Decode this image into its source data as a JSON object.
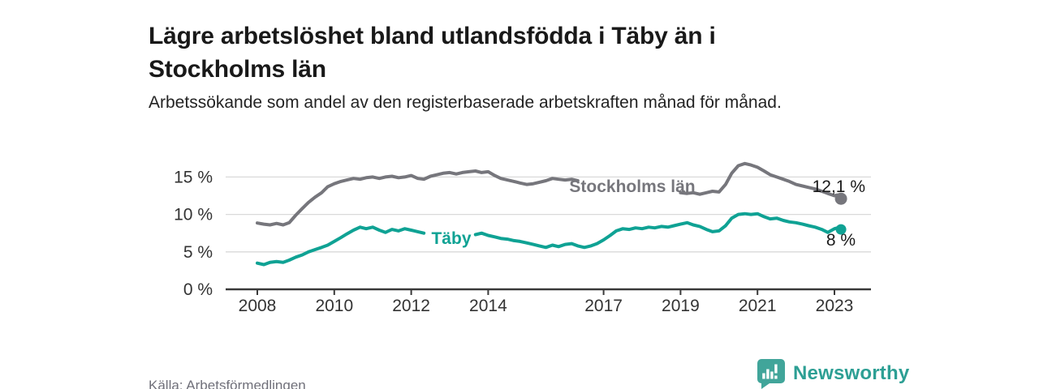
{
  "title": "Lägre arbetslöshet bland utlandsfödda i Täby än i Stockholms län",
  "subtitle": "Arbetssökande som andel av den registerbaserade arbetskraften månad för månad.",
  "source": "Källa: Arbetsförmedlingen",
  "brand": {
    "name": "Newsworthy",
    "icon": "newsworthy-speech-bubble-bar-chart-icon",
    "icon_color": "#41a59a",
    "text_color": "#2d9f94"
  },
  "colors": {
    "stockholm_line": "#76767c",
    "taby_line": "#0fa294",
    "axis": "#3a3a3a",
    "grid": "#d9d9d9",
    "tick_text": "#333333",
    "end_label_text": "#1a1a1a"
  },
  "chart_data": {
    "type": "line",
    "title": "Lägre arbetslöshet bland utlandsfödda i Täby än i Stockholms län",
    "xlabel": "",
    "ylabel": "Arbetssökande som andel av den registerbaserade arbetskraften",
    "x_ticks": [
      2008,
      2010,
      2012,
      2014,
      2017,
      2019,
      2021,
      2023
    ],
    "y_ticks": [
      {
        "value": 0,
        "label": "0 %"
      },
      {
        "value": 5,
        "label": "5 %"
      },
      {
        "value": 10,
        "label": "10 %"
      },
      {
        "value": 15,
        "label": "15 %"
      }
    ],
    "xlim": [
      2007.2,
      2023.95
    ],
    "ylim": [
      0,
      18
    ],
    "grid": "horizontal",
    "legend_position": "inline-on-line",
    "series": [
      {
        "name": "Stockholms län",
        "color": "#76767c",
        "end_label": "12,1 %",
        "end_value": 12.1,
        "label_gap": [
          2016.4,
          2018.85
        ],
        "points": [
          [
            2008.0,
            8.85
          ],
          [
            2008.17,
            8.7
          ],
          [
            2008.33,
            8.6
          ],
          [
            2008.5,
            8.8
          ],
          [
            2008.67,
            8.6
          ],
          [
            2008.83,
            8.9
          ],
          [
            2009.0,
            9.9
          ],
          [
            2009.17,
            10.8
          ],
          [
            2009.33,
            11.6
          ],
          [
            2009.5,
            12.3
          ],
          [
            2009.67,
            12.9
          ],
          [
            2009.83,
            13.7
          ],
          [
            2010.0,
            14.1
          ],
          [
            2010.17,
            14.4
          ],
          [
            2010.33,
            14.6
          ],
          [
            2010.5,
            14.8
          ],
          [
            2010.67,
            14.7
          ],
          [
            2010.83,
            14.9
          ],
          [
            2011.0,
            15.0
          ],
          [
            2011.17,
            14.8
          ],
          [
            2011.33,
            15.0
          ],
          [
            2011.5,
            15.1
          ],
          [
            2011.67,
            14.9
          ],
          [
            2011.83,
            15.0
          ],
          [
            2012.0,
            15.2
          ],
          [
            2012.17,
            14.8
          ],
          [
            2012.33,
            14.7
          ],
          [
            2012.5,
            15.1
          ],
          [
            2012.67,
            15.3
          ],
          [
            2012.83,
            15.5
          ],
          [
            2013.0,
            15.6
          ],
          [
            2013.17,
            15.4
          ],
          [
            2013.33,
            15.6
          ],
          [
            2013.5,
            15.7
          ],
          [
            2013.67,
            15.8
          ],
          [
            2013.83,
            15.6
          ],
          [
            2014.0,
            15.7
          ],
          [
            2014.17,
            15.2
          ],
          [
            2014.33,
            14.8
          ],
          [
            2014.5,
            14.6
          ],
          [
            2014.67,
            14.4
          ],
          [
            2014.83,
            14.2
          ],
          [
            2015.0,
            14.0
          ],
          [
            2015.17,
            14.1
          ],
          [
            2015.33,
            14.3
          ],
          [
            2015.5,
            14.5
          ],
          [
            2015.67,
            14.8
          ],
          [
            2015.83,
            14.7
          ],
          [
            2016.0,
            14.6
          ],
          [
            2016.17,
            14.7
          ],
          [
            2016.33,
            14.5
          ],
          [
            2016.5,
            14.4
          ],
          [
            2016.75,
            14.2
          ],
          [
            2017.0,
            14.0
          ],
          [
            2017.25,
            13.8
          ],
          [
            2017.5,
            13.6
          ],
          [
            2017.75,
            13.4
          ],
          [
            2018.0,
            13.3
          ],
          [
            2018.25,
            13.2
          ],
          [
            2018.5,
            13.1
          ],
          [
            2018.75,
            13.0
          ],
          [
            2019.0,
            12.9
          ],
          [
            2019.17,
            12.8
          ],
          [
            2019.33,
            12.9
          ],
          [
            2019.5,
            12.7
          ],
          [
            2019.67,
            12.9
          ],
          [
            2019.83,
            13.1
          ],
          [
            2020.0,
            13.0
          ],
          [
            2020.17,
            14.0
          ],
          [
            2020.33,
            15.5
          ],
          [
            2020.5,
            16.5
          ],
          [
            2020.67,
            16.8
          ],
          [
            2020.83,
            16.6
          ],
          [
            2021.0,
            16.3
          ],
          [
            2021.17,
            15.8
          ],
          [
            2021.33,
            15.3
          ],
          [
            2021.5,
            15.0
          ],
          [
            2021.67,
            14.7
          ],
          [
            2021.83,
            14.4
          ],
          [
            2022.0,
            14.0
          ],
          [
            2022.17,
            13.8
          ],
          [
            2022.33,
            13.6
          ],
          [
            2022.5,
            13.4
          ],
          [
            2022.67,
            13.1
          ],
          [
            2022.83,
            12.8
          ],
          [
            2023.0,
            12.5
          ],
          [
            2023.08,
            12.6
          ],
          [
            2023.17,
            12.1
          ]
        ]
      },
      {
        "name": "Täby",
        "color": "#0fa294",
        "end_label": "8 %",
        "end_value": 8.0,
        "label_gap": [
          2012.45,
          2013.6
        ],
        "points": [
          [
            2008.0,
            3.5
          ],
          [
            2008.17,
            3.3
          ],
          [
            2008.33,
            3.6
          ],
          [
            2008.5,
            3.7
          ],
          [
            2008.67,
            3.6
          ],
          [
            2008.83,
            3.9
          ],
          [
            2009.0,
            4.3
          ],
          [
            2009.17,
            4.6
          ],
          [
            2009.33,
            5.0
          ],
          [
            2009.5,
            5.3
          ],
          [
            2009.67,
            5.6
          ],
          [
            2009.83,
            5.9
          ],
          [
            2010.0,
            6.4
          ],
          [
            2010.17,
            6.9
          ],
          [
            2010.33,
            7.4
          ],
          [
            2010.5,
            7.9
          ],
          [
            2010.67,
            8.3
          ],
          [
            2010.83,
            8.1
          ],
          [
            2011.0,
            8.3
          ],
          [
            2011.17,
            7.9
          ],
          [
            2011.33,
            7.6
          ],
          [
            2011.5,
            8.0
          ],
          [
            2011.67,
            7.8
          ],
          [
            2011.83,
            8.1
          ],
          [
            2012.0,
            7.9
          ],
          [
            2012.17,
            7.7
          ],
          [
            2012.33,
            7.5
          ],
          [
            2012.67,
            7.4
          ],
          [
            2013.0,
            7.3
          ],
          [
            2013.33,
            7.4
          ],
          [
            2013.67,
            7.3
          ],
          [
            2013.83,
            7.5
          ],
          [
            2014.0,
            7.2
          ],
          [
            2014.17,
            7.0
          ],
          [
            2014.33,
            6.8
          ],
          [
            2014.5,
            6.7
          ],
          [
            2014.67,
            6.5
          ],
          [
            2014.83,
            6.4
          ],
          [
            2015.0,
            6.2
          ],
          [
            2015.17,
            6.0
          ],
          [
            2015.33,
            5.8
          ],
          [
            2015.5,
            5.6
          ],
          [
            2015.67,
            5.9
          ],
          [
            2015.83,
            5.7
          ],
          [
            2016.0,
            6.0
          ],
          [
            2016.17,
            6.1
          ],
          [
            2016.33,
            5.8
          ],
          [
            2016.5,
            5.6
          ],
          [
            2016.67,
            5.8
          ],
          [
            2016.83,
            6.1
          ],
          [
            2017.0,
            6.6
          ],
          [
            2017.17,
            7.2
          ],
          [
            2017.33,
            7.8
          ],
          [
            2017.5,
            8.1
          ],
          [
            2017.67,
            8.0
          ],
          [
            2017.83,
            8.2
          ],
          [
            2018.0,
            8.1
          ],
          [
            2018.17,
            8.3
          ],
          [
            2018.33,
            8.2
          ],
          [
            2018.5,
            8.4
          ],
          [
            2018.67,
            8.3
          ],
          [
            2018.83,
            8.5
          ],
          [
            2019.0,
            8.7
          ],
          [
            2019.17,
            8.9
          ],
          [
            2019.33,
            8.6
          ],
          [
            2019.5,
            8.4
          ],
          [
            2019.67,
            8.0
          ],
          [
            2019.83,
            7.7
          ],
          [
            2020.0,
            7.8
          ],
          [
            2020.17,
            8.5
          ],
          [
            2020.33,
            9.5
          ],
          [
            2020.5,
            10.0
          ],
          [
            2020.67,
            10.1
          ],
          [
            2020.83,
            10.0
          ],
          [
            2021.0,
            10.1
          ],
          [
            2021.17,
            9.7
          ],
          [
            2021.33,
            9.4
          ],
          [
            2021.5,
            9.5
          ],
          [
            2021.67,
            9.2
          ],
          [
            2021.83,
            9.0
          ],
          [
            2022.0,
            8.9
          ],
          [
            2022.17,
            8.7
          ],
          [
            2022.33,
            8.5
          ],
          [
            2022.5,
            8.3
          ],
          [
            2022.67,
            8.0
          ],
          [
            2022.83,
            7.6
          ],
          [
            2023.0,
            8.1
          ],
          [
            2023.08,
            8.2
          ],
          [
            2023.17,
            8.0
          ]
        ]
      }
    ]
  }
}
